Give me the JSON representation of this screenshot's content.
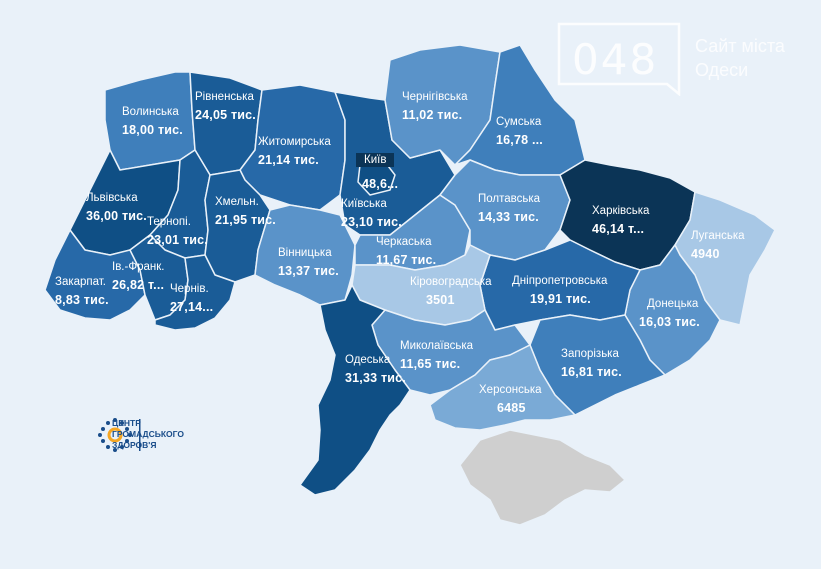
{
  "watermark": {
    "number": "048",
    "line1": "Сайт міста",
    "line2": "Одеси"
  },
  "logo": {
    "line1": "ЦЕНТР",
    "line2": "ГРОМАДСЬКОГО",
    "line3": "ЗДОРОВ'Я"
  },
  "kyiv_city": {
    "name": "Київ",
    "value": "48,6..."
  },
  "colors": {
    "background": "#e9f1f9",
    "darkest": "#0b3456",
    "dark": "#0f4f85",
    "mid_dark": "#1a5c97",
    "mid": "#2769a8",
    "medium": "#3f7fbb",
    "light": "#5a93c9",
    "lighter": "#7aaad6",
    "lightest": "#a8c8e6",
    "crimea": "#cfcfcf"
  },
  "regions": {
    "volynska": {
      "name": "Волинська",
      "value": "18,00 тис."
    },
    "rivnenska": {
      "name": "Рівненська",
      "value": "24,05 тис."
    },
    "zhytomyrska": {
      "name": "Житомирська",
      "value": "21,14 тис."
    },
    "chernihivska": {
      "name": "Чернігівська",
      "value": "11,02 тис."
    },
    "sumska": {
      "name": "Сумська",
      "value": "16,78 ..."
    },
    "lvivska": {
      "name": "Львівська",
      "value": "36,00 тис."
    },
    "khmelnytska": {
      "name": "Хмельн.",
      "value": "21,95 тис."
    },
    "ternopilska": {
      "name": "Тернопі.",
      "value": "23,01 тис."
    },
    "kyivska": {
      "name": "Київська",
      "value": "23,10 тис."
    },
    "poltavska": {
      "name": "Полтавська",
      "value": "14,33 тис."
    },
    "kharkivska": {
      "name": "Харківська",
      "value": "46,14 т..."
    },
    "luhanska": {
      "name": "Луганська",
      "value": "4940"
    },
    "vinnytska": {
      "name": "Вінницька",
      "value": "13,37 тис."
    },
    "cherkaska": {
      "name": "Черкаська",
      "value": "11,67 тис."
    },
    "kirovohradska": {
      "name": "Кіровоградська",
      "value": "3501"
    },
    "dnipropetrovska": {
      "name": "Дніпропетровська",
      "value": "19,91 тис."
    },
    "donetska": {
      "name": "Донецька",
      "value": "16,03 тис."
    },
    "zakarpatska": {
      "name": "Закарпат.",
      "value": "8,83 тис."
    },
    "ivanofrankivska": {
      "name": "Ів.-Франк.",
      "value": "26,82 т..."
    },
    "chernivetska": {
      "name": "Чернів.",
      "value": "27,14..."
    },
    "odeska": {
      "name": "Одеська",
      "value": "31,33 тис."
    },
    "mykolaivska": {
      "name": "Миколаївська",
      "value": "11,65 тис."
    },
    "zaporizka": {
      "name": "Запорізька",
      "value": "16,81 тис."
    },
    "khersonska": {
      "name": "Херсонська",
      "value": "6485"
    }
  }
}
